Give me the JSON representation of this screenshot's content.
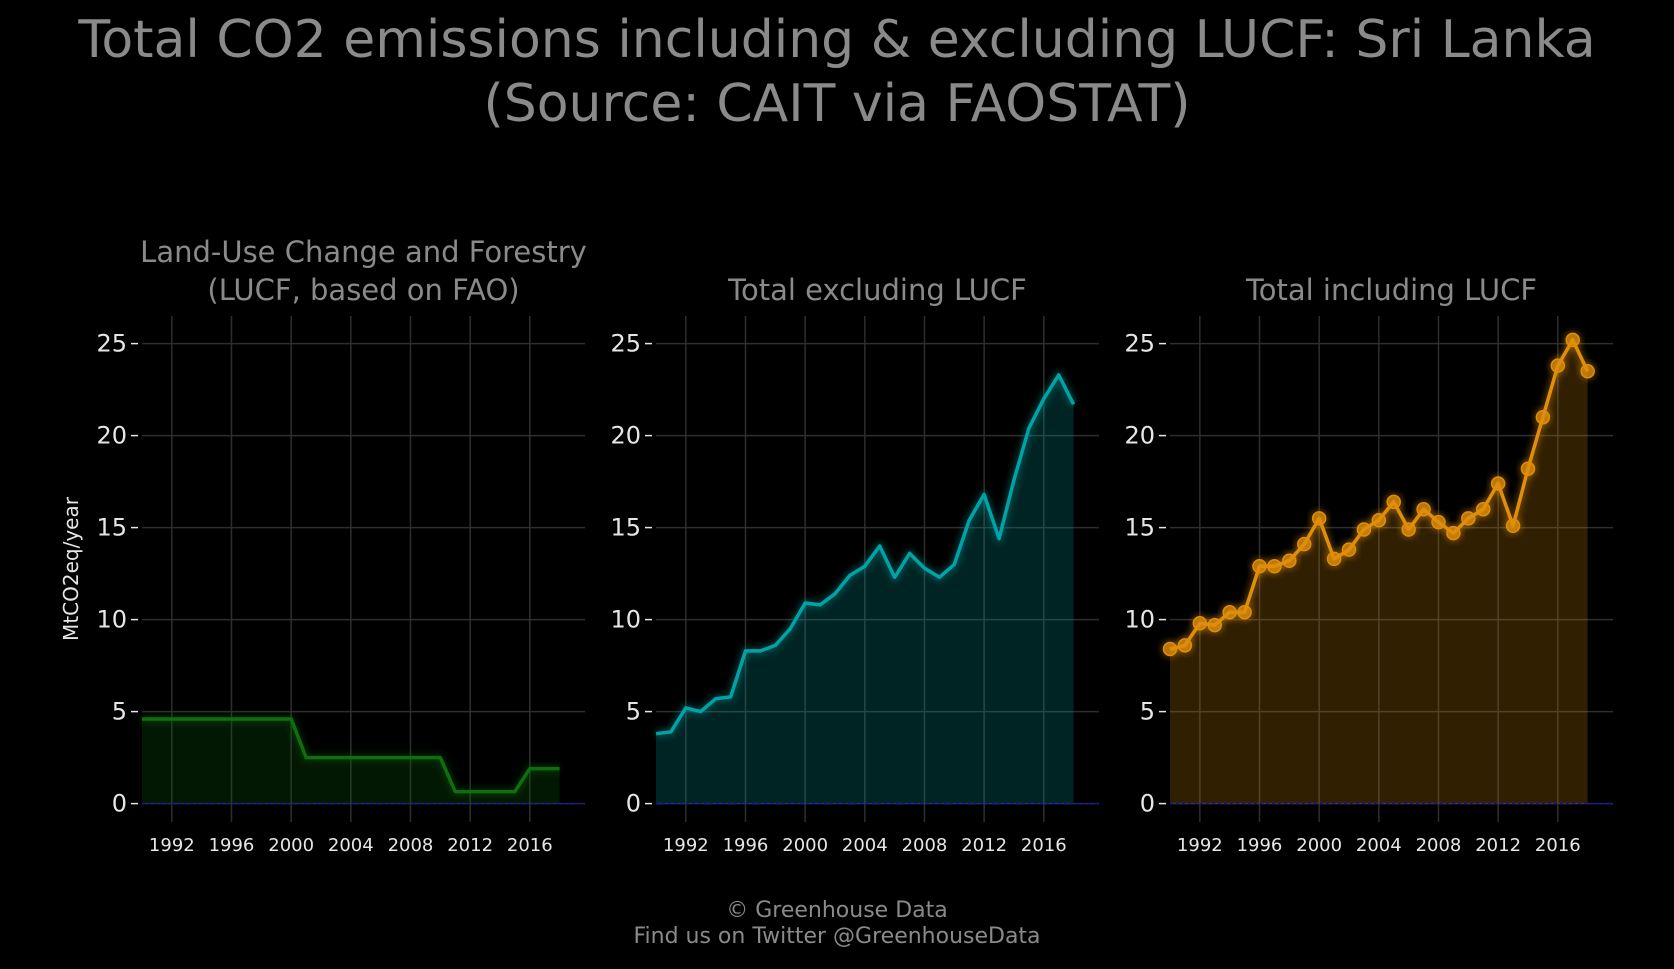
{
  "title_lines": [
    "Total CO2 emissions including & excluding LUCF: Sri Lanka",
    "(Source: CAIT via FAOSTAT)"
  ],
  "credits": {
    "line1": "© Greenhouse Data",
    "line2": "Find us on Twitter @GreenhouseData"
  },
  "colors": {
    "background": "#000000",
    "grid": "#2e2e2e",
    "zero_line": "#1010c0",
    "lucf": "#0f6e0f",
    "total_excl": "#00a3a6",
    "total_incl": "#e08e0b"
  },
  "chart_data": [
    {
      "type": "area",
      "title_lines": [
        "Land-Use Change and Forestry",
        "(LUCF, based on FAO)"
      ],
      "ylabel": "MtCO2eq/year",
      "color_key": "lucf",
      "markers": false,
      "ylim": [
        -1,
        26.5
      ],
      "xlim": [
        1990,
        2019.7
      ],
      "yticks": [
        0,
        5,
        10,
        15,
        20,
        25
      ],
      "xticks": [
        1992,
        1996,
        2000,
        2004,
        2008,
        2012,
        2016
      ],
      "x": [
        1990,
        1991,
        1992,
        1993,
        1994,
        1995,
        1996,
        1997,
        1998,
        1999,
        2000,
        2001,
        2002,
        2003,
        2004,
        2005,
        2006,
        2007,
        2008,
        2009,
        2010,
        2011,
        2012,
        2013,
        2014,
        2015,
        2016,
        2017,
        2018
      ],
      "values": [
        4.6,
        4.6,
        4.6,
        4.6,
        4.6,
        4.6,
        4.6,
        4.6,
        4.6,
        4.6,
        4.6,
        2.5,
        2.5,
        2.5,
        2.5,
        2.5,
        2.5,
        2.5,
        2.5,
        2.5,
        2.5,
        0.65,
        0.65,
        0.65,
        0.65,
        0.65,
        1.9,
        1.9,
        1.9
      ]
    },
    {
      "type": "area",
      "title_lines": [
        "Total excluding LUCF"
      ],
      "ylabel": "",
      "color_key": "total_excl",
      "markers": false,
      "ylim": [
        -1,
        26.5
      ],
      "xlim": [
        1990,
        2019.7
      ],
      "yticks": [
        0,
        5,
        10,
        15,
        20,
        25
      ],
      "xticks": [
        1992,
        1996,
        2000,
        2004,
        2008,
        2012,
        2016
      ],
      "x": [
        1990,
        1991,
        1992,
        1993,
        1994,
        1995,
        1996,
        1997,
        1998,
        1999,
        2000,
        2001,
        2002,
        2003,
        2004,
        2005,
        2006,
        2007,
        2008,
        2009,
        2010,
        2011,
        2012,
        2013,
        2014,
        2015,
        2016,
        2017,
        2018
      ],
      "values": [
        3.8,
        3.9,
        5.2,
        5.0,
        5.7,
        5.8,
        8.3,
        8.3,
        8.6,
        9.5,
        10.9,
        10.8,
        11.4,
        12.4,
        12.9,
        14.0,
        12.3,
        13.6,
        12.8,
        12.3,
        13.0,
        15.4,
        16.8,
        14.4,
        17.6,
        20.4,
        22.0,
        23.3,
        21.7
      ]
    },
    {
      "type": "area",
      "title_lines": [
        "Total including LUCF"
      ],
      "ylabel": "",
      "color_key": "total_incl",
      "markers": true,
      "ylim": [
        -1,
        26.5
      ],
      "xlim": [
        1990,
        2019.7
      ],
      "yticks": [
        0,
        5,
        10,
        15,
        20,
        25
      ],
      "xticks": [
        1992,
        1996,
        2000,
        2004,
        2008,
        2012,
        2016
      ],
      "x": [
        1990,
        1991,
        1992,
        1993,
        1994,
        1995,
        1996,
        1997,
        1998,
        1999,
        2000,
        2001,
        2002,
        2003,
        2004,
        2005,
        2006,
        2007,
        2008,
        2009,
        2010,
        2011,
        2012,
        2013,
        2014,
        2015,
        2016,
        2017,
        2018
      ],
      "values": [
        8.4,
        8.6,
        9.8,
        9.7,
        10.4,
        10.4,
        12.9,
        12.9,
        13.2,
        14.1,
        15.5,
        13.3,
        13.8,
        14.9,
        15.4,
        16.4,
        14.9,
        16.0,
        15.3,
        14.7,
        15.5,
        16.0,
        17.4,
        15.1,
        18.2,
        21.0,
        23.8,
        25.2,
        23.5
      ]
    }
  ]
}
